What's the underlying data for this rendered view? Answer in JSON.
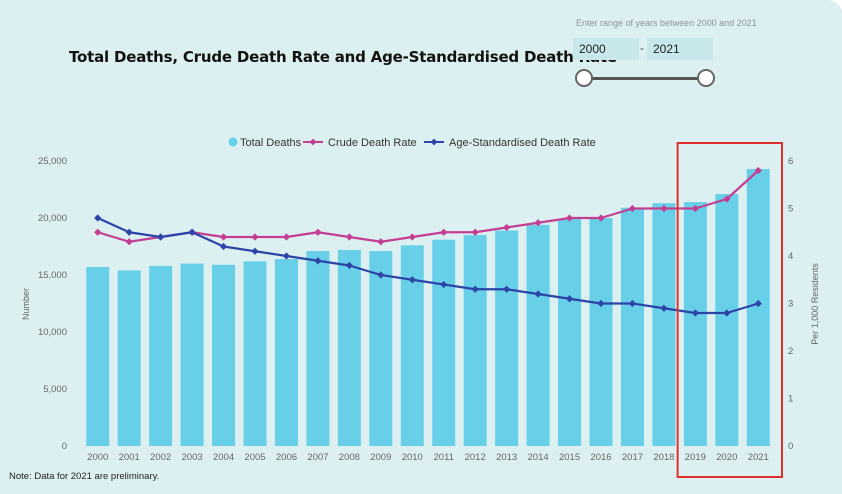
{
  "title": "Total Deaths, Crude Death Rate and Age-Standardised Death Rate",
  "range_filter": {
    "label": "Enter range of years between 2000 and 2021",
    "start": "2000",
    "end": "2021",
    "separator": "-"
  },
  "footnote": "Note: Data for 2021 are preliminary.",
  "colors": {
    "total_deaths": "#67cfe7",
    "crude": "#c43f93",
    "age_std": "#2c44a8",
    "highlight": "#e0302c"
  },
  "chart_data": {
    "type": "bar",
    "categories": [
      "2000",
      "2001",
      "2002",
      "2003",
      "2004",
      "2005",
      "2006",
      "2007",
      "2008",
      "2009",
      "2010",
      "2011",
      "2012",
      "2013",
      "2014",
      "2015",
      "2016",
      "2017",
      "2018",
      "2019",
      "2020",
      "2021"
    ],
    "series": [
      {
        "name": "Total Deaths",
        "type": "bar",
        "axis": "left",
        "values": [
          15700,
          15400,
          15800,
          16000,
          15900,
          16200,
          16400,
          17100,
          17200,
          17100,
          17600,
          18100,
          18500,
          18900,
          19400,
          19900,
          20000,
          20900,
          21300,
          21400,
          22100,
          24300
        ]
      },
      {
        "name": "Crude Death Rate",
        "type": "line",
        "axis": "right",
        "values": [
          4.5,
          4.3,
          4.4,
          4.5,
          4.4,
          4.4,
          4.4,
          4.5,
          4.4,
          4.3,
          4.4,
          4.5,
          4.5,
          4.6,
          4.7,
          4.8,
          4.8,
          5.0,
          5.0,
          5.0,
          5.2,
          5.8
        ]
      },
      {
        "name": "Age-Standardised Death Rate",
        "type": "line",
        "axis": "right",
        "values": [
          4.8,
          4.5,
          4.4,
          4.5,
          4.2,
          4.1,
          4.0,
          3.9,
          3.8,
          3.6,
          3.5,
          3.4,
          3.3,
          3.3,
          3.2,
          3.1,
          3.0,
          3.0,
          2.9,
          2.8,
          2.8,
          3.0
        ]
      }
    ],
    "ylabel": "Number",
    "y2label": "Per 1,000 Residents",
    "ylim": [
      0,
      25000
    ],
    "y2lim": [
      0,
      6
    ],
    "yticks": [
      "0",
      "5,000",
      "10,000",
      "15,000",
      "20,000",
      "25,000"
    ],
    "y2ticks": [
      "0",
      "1",
      "2",
      "3",
      "4",
      "5",
      "6"
    ],
    "legend_position": "top-center",
    "highlight_categories": [
      "2019",
      "2020",
      "2021"
    ]
  }
}
